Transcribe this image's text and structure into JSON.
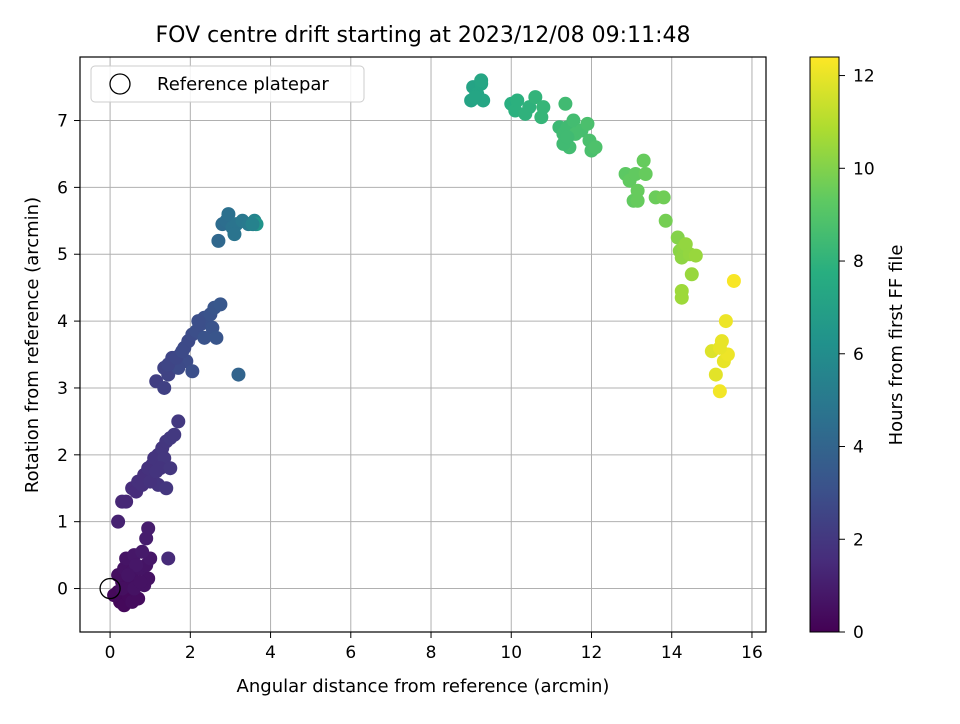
{
  "chart_data": {
    "type": "scatter",
    "title": "FOV centre drift starting at 2023/12/08 09:11:48",
    "xlabel": "Angular distance from reference (arcmin)",
    "ylabel": "Rotation from reference (arcmin)",
    "xlim": [
      -0.75,
      16.35
    ],
    "ylim": [
      -0.65,
      7.95
    ],
    "xticks": [
      0,
      2,
      4,
      6,
      8,
      10,
      12,
      14,
      16
    ],
    "yticks": [
      0,
      1,
      2,
      3,
      4,
      5,
      6,
      7
    ],
    "grid": true,
    "legend": {
      "placement": "top-left",
      "entries": [
        "Reference platepar"
      ]
    },
    "reference_point": {
      "x": 0,
      "y": 0
    },
    "colorbar": {
      "label": "Hours from first FF file",
      "range": [
        0,
        12.4
      ],
      "ticks": [
        0,
        2,
        4,
        6,
        8,
        10,
        12
      ],
      "colormap": "viridis"
    },
    "points": [
      [
        0.2,
        -0.05,
        0.2
      ],
      [
        0.25,
        -0.2,
        0.2
      ],
      [
        0.35,
        -0.25,
        0.3
      ],
      [
        0.45,
        -0.1,
        0.3
      ],
      [
        0.55,
        -0.2,
        0.4
      ],
      [
        0.7,
        -0.15,
        0.4
      ],
      [
        0.1,
        -0.1,
        0.3
      ],
      [
        0.3,
        0.1,
        0.4
      ],
      [
        0.5,
        0.05,
        0.5
      ],
      [
        0.65,
        0.1,
        0.5
      ],
      [
        0.85,
        0.05,
        0.6
      ],
      [
        0.95,
        0.15,
        0.6
      ],
      [
        0.2,
        0.2,
        0.5
      ],
      [
        0.35,
        0.3,
        0.6
      ],
      [
        0.55,
        0.25,
        0.6
      ],
      [
        0.75,
        0.3,
        0.7
      ],
      [
        0.9,
        0.35,
        0.7
      ],
      [
        1.0,
        0.45,
        0.8
      ],
      [
        0.4,
        0.45,
        0.7
      ],
      [
        0.6,
        0.5,
        0.8
      ],
      [
        0.8,
        0.55,
        0.9
      ],
      [
        0.65,
        0.35,
        0.8
      ],
      [
        0.45,
        0.2,
        0.7
      ],
      [
        0.3,
        0.0,
        0.5
      ],
      [
        0.6,
        0.0,
        0.6
      ],
      [
        0.75,
        0.1,
        0.6
      ],
      [
        0.9,
        0.75,
        1.0
      ],
      [
        0.95,
        0.9,
        1.0
      ],
      [
        1.45,
        0.45,
        1.5
      ],
      [
        0.2,
        1.0,
        1.2
      ],
      [
        0.3,
        1.3,
        1.4
      ],
      [
        0.4,
        1.3,
        1.4
      ],
      [
        0.55,
        1.5,
        1.6
      ],
      [
        0.65,
        1.45,
        1.6
      ],
      [
        0.7,
        1.6,
        1.7
      ],
      [
        0.85,
        1.7,
        1.7
      ],
      [
        0.95,
        1.8,
        1.8
      ],
      [
        0.8,
        1.55,
        1.7
      ],
      [
        1.05,
        1.85,
        1.8
      ],
      [
        1.1,
        1.95,
        1.9
      ],
      [
        1.2,
        2.0,
        1.9
      ],
      [
        1.3,
        2.1,
        2.0
      ],
      [
        1.4,
        2.2,
        2.0
      ],
      [
        1.5,
        2.25,
        2.1
      ],
      [
        1.6,
        2.3,
        2.1
      ],
      [
        1.35,
        1.95,
        2.0
      ],
      [
        1.25,
        1.8,
        1.9
      ],
      [
        1.5,
        1.8,
        2.0
      ],
      [
        1.2,
        1.55,
        1.9
      ],
      [
        1.4,
        1.5,
        2.0
      ],
      [
        1.7,
        2.5,
        2.1
      ],
      [
        1.0,
        1.6,
        1.8
      ],
      [
        1.15,
        1.75,
        1.9
      ],
      [
        1.15,
        3.1,
        2.3
      ],
      [
        1.35,
        3.0,
        2.4
      ],
      [
        1.45,
        3.2,
        2.5
      ],
      [
        1.35,
        3.3,
        2.5
      ],
      [
        1.6,
        3.35,
        2.6
      ],
      [
        1.75,
        3.5,
        2.7
      ],
      [
        1.85,
        3.6,
        2.8
      ],
      [
        1.95,
        3.7,
        2.8
      ],
      [
        2.05,
        3.8,
        2.9
      ],
      [
        2.15,
        3.85,
        3.0
      ],
      [
        2.25,
        3.95,
        3.0
      ],
      [
        2.35,
        4.05,
        3.1
      ],
      [
        2.5,
        4.1,
        3.2
      ],
      [
        2.6,
        4.2,
        3.3
      ],
      [
        2.75,
        4.25,
        3.4
      ],
      [
        2.55,
        3.9,
        3.2
      ],
      [
        2.35,
        3.75,
        3.2
      ],
      [
        2.65,
        3.75,
        3.3
      ],
      [
        1.9,
        3.4,
        2.9
      ],
      [
        1.7,
        3.3,
        2.8
      ],
      [
        2.05,
        3.25,
        3.0
      ],
      [
        1.55,
        3.45,
        2.6
      ],
      [
        1.45,
        3.35,
        2.6
      ],
      [
        1.65,
        3.45,
        2.7
      ],
      [
        1.8,
        3.55,
        2.8
      ],
      [
        3.2,
        3.2,
        4.0
      ],
      [
        2.2,
        4.0,
        3.0
      ],
      [
        2.7,
        5.2,
        4.2
      ],
      [
        2.8,
        5.45,
        4.4
      ],
      [
        2.9,
        5.5,
        4.5
      ],
      [
        2.95,
        5.6,
        4.6
      ],
      [
        3.05,
        5.4,
        4.7
      ],
      [
        3.15,
        5.45,
        4.8
      ],
      [
        3.1,
        5.3,
        4.8
      ],
      [
        3.3,
        5.5,
        5.0
      ],
      [
        3.45,
        5.45,
        5.1
      ],
      [
        3.6,
        5.5,
        5.6
      ],
      [
        3.65,
        5.45,
        6.4
      ],
      [
        3.55,
        5.45,
        5.5
      ],
      [
        9.0,
        7.3,
        7.2
      ],
      [
        9.05,
        7.5,
        7.2
      ],
      [
        9.15,
        7.4,
        7.3
      ],
      [
        9.25,
        7.55,
        7.3
      ],
      [
        9.3,
        7.3,
        7.4
      ],
      [
        9.1,
        7.35,
        7.3
      ],
      [
        9.25,
        7.6,
        7.4
      ],
      [
        10.0,
        7.25,
        7.8
      ],
      [
        10.1,
        7.15,
        7.9
      ],
      [
        10.15,
        7.3,
        7.9
      ],
      [
        10.35,
        7.1,
        8.0
      ],
      [
        10.45,
        7.2,
        8.0
      ],
      [
        10.6,
        7.35,
        8.1
      ],
      [
        10.75,
        7.05,
        8.2
      ],
      [
        10.8,
        7.2,
        8.2
      ],
      [
        11.2,
        6.9,
        8.4
      ],
      [
        11.3,
        6.8,
        8.5
      ],
      [
        11.35,
        7.25,
        8.5
      ],
      [
        11.4,
        6.9,
        8.5
      ],
      [
        11.45,
        6.6,
        8.6
      ],
      [
        11.55,
        7.0,
        8.6
      ],
      [
        11.6,
        6.8,
        8.7
      ],
      [
        11.75,
        6.85,
        8.7
      ],
      [
        11.9,
        6.95,
        8.8
      ],
      [
        11.95,
        6.7,
        8.8
      ],
      [
        12.0,
        6.55,
        8.8
      ],
      [
        12.1,
        6.6,
        8.9
      ],
      [
        11.3,
        6.65,
        8.5
      ],
      [
        11.4,
        6.75,
        8.5
      ],
      [
        12.85,
        6.2,
        9.3
      ],
      [
        12.95,
        6.1,
        9.4
      ],
      [
        13.1,
        6.2,
        9.4
      ],
      [
        13.05,
        5.8,
        9.4
      ],
      [
        13.15,
        5.95,
        9.5
      ],
      [
        13.3,
        6.4,
        9.5
      ],
      [
        13.35,
        6.2,
        9.5
      ],
      [
        13.15,
        5.8,
        9.5
      ],
      [
        13.6,
        5.85,
        9.6
      ],
      [
        13.8,
        5.85,
        9.7
      ],
      [
        13.85,
        5.5,
        9.8
      ],
      [
        14.15,
        5.25,
        10.1
      ],
      [
        14.2,
        5.05,
        10.2
      ],
      [
        14.25,
        4.95,
        10.3
      ],
      [
        14.3,
        5.1,
        10.3
      ],
      [
        14.35,
        5.15,
        10.4
      ],
      [
        14.45,
        5.0,
        10.4
      ],
      [
        14.6,
        4.98,
        10.5
      ],
      [
        14.5,
        4.7,
        10.5
      ],
      [
        14.25,
        4.45,
        10.6
      ],
      [
        14.25,
        4.35,
        10.6
      ],
      [
        15.0,
        3.55,
        11.8
      ],
      [
        15.1,
        3.2,
        11.9
      ],
      [
        15.25,
        3.7,
        12.0
      ],
      [
        15.3,
        3.4,
        12.0
      ],
      [
        15.4,
        3.5,
        12.1
      ],
      [
        15.35,
        4.0,
        12.1
      ],
      [
        15.55,
        4.6,
        12.3
      ],
      [
        15.2,
        2.95,
        12.2
      ],
      [
        15.2,
        3.6,
        12.0
      ]
    ]
  }
}
